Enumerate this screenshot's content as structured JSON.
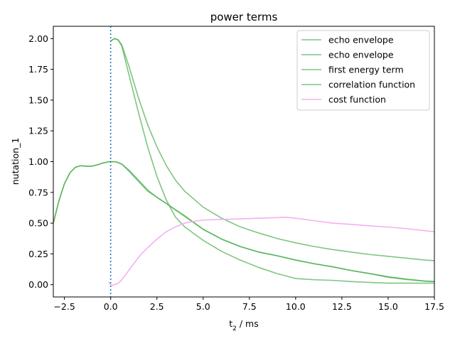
{
  "chart_data": {
    "type": "line",
    "title": "power terms",
    "xlabel_main": "t",
    "xlabel_sub": "2",
    "xlabel_unit": " / ms",
    "ylabel": "nutation_1",
    "xlim": [
      -3.1,
      17.5
    ],
    "ylim": [
      -0.1,
      2.1
    ],
    "xticks": [
      -2.5,
      0.0,
      2.5,
      5.0,
      7.5,
      10.0,
      12.5,
      15.0,
      17.5
    ],
    "xtick_labels": [
      "−2.5",
      "0.0",
      "2.5",
      "5.0",
      "7.5",
      "10.0",
      "12.5",
      "15.0",
      "17.5"
    ],
    "yticks": [
      0.0,
      0.25,
      0.5,
      0.75,
      1.0,
      1.25,
      1.5,
      1.75,
      2.0
    ],
    "ytick_labels": [
      "0.00",
      "0.25",
      "0.50",
      "0.75",
      "1.00",
      "1.25",
      "1.50",
      "1.75",
      "2.00"
    ],
    "vline": {
      "x": 0.0,
      "color": "#1f77b4",
      "style": "dotted"
    },
    "legend_position": "top-right",
    "series": [
      {
        "name": "echo envelope",
        "color": "#4caf50",
        "x": [
          -3.1,
          -2.8,
          -2.5,
          -2.2,
          -1.9,
          -1.6,
          -1.3,
          -1.0,
          -0.7,
          -0.4,
          -0.1,
          0.0,
          0.3,
          0.6,
          1.0,
          1.5,
          2.0,
          2.5,
          3.0,
          4.0,
          5.0,
          6.0,
          7.0,
          8.0,
          9.0,
          10.0,
          11.0,
          12.0,
          13.0,
          14.0,
          15.0,
          16.0,
          17.0,
          17.5
        ],
        "y": [
          0.5,
          0.68,
          0.82,
          0.91,
          0.955,
          0.967,
          0.962,
          0.963,
          0.975,
          0.99,
          0.998,
          1.0,
          0.998,
          0.98,
          0.92,
          0.84,
          0.76,
          0.71,
          0.66,
          0.56,
          0.45,
          0.37,
          0.31,
          0.265,
          0.235,
          0.2,
          0.17,
          0.145,
          0.115,
          0.09,
          0.065,
          0.045,
          0.03,
          0.025
        ]
      },
      {
        "name": "echo envelope",
        "color": "#4caf50",
        "x": [
          0.0,
          0.2,
          0.4,
          0.6,
          1.0,
          1.5,
          2.0,
          2.5,
          3.0,
          3.5,
          4.0,
          5.0,
          6.0,
          7.0,
          8.0,
          9.0,
          10.0,
          11.0,
          12.0,
          13.0,
          14.0,
          15.0,
          16.0,
          17.0,
          17.5
        ],
        "y": [
          1.98,
          2.0,
          1.99,
          1.94,
          1.7,
          1.4,
          1.12,
          0.88,
          0.69,
          0.55,
          0.47,
          0.36,
          0.27,
          0.2,
          0.14,
          0.09,
          0.05,
          0.04,
          0.035,
          0.025,
          0.018,
          0.012,
          0.012,
          0.012,
          0.012
        ]
      },
      {
        "name": "first energy term",
        "color": "#4caf50",
        "x": [
          0.0,
          0.2,
          0.4,
          0.6,
          1.0,
          1.5,
          2.0,
          2.5,
          3.0,
          3.5,
          4.0,
          5.0,
          6.0,
          7.0,
          8.0,
          9.0,
          10.0,
          11.0,
          12.0,
          13.0,
          14.0,
          15.0,
          16.0,
          17.0,
          17.5
        ],
        "y": [
          1.98,
          2.0,
          1.99,
          1.95,
          1.77,
          1.52,
          1.3,
          1.12,
          0.97,
          0.85,
          0.76,
          0.63,
          0.54,
          0.47,
          0.42,
          0.375,
          0.34,
          0.31,
          0.285,
          0.265,
          0.245,
          0.23,
          0.215,
          0.2,
          0.195
        ]
      },
      {
        "name": "correlation function",
        "color": "#4caf50",
        "x": [
          -3.1,
          -2.8,
          -2.5,
          -2.2,
          -1.9,
          -1.6,
          -1.3,
          -1.0,
          -0.7,
          -0.4,
          -0.1,
          0.0,
          0.3,
          0.6,
          1.0,
          1.5,
          2.0,
          2.5,
          3.0,
          4.0,
          5.0,
          6.0,
          7.0,
          8.0,
          9.0,
          10.0,
          11.0,
          12.0,
          13.0,
          14.0,
          15.0,
          16.0,
          17.0,
          17.5
        ],
        "y": [
          0.5,
          0.68,
          0.82,
          0.91,
          0.955,
          0.967,
          0.962,
          0.963,
          0.975,
          0.99,
          0.998,
          1.0,
          0.998,
          0.98,
          0.93,
          0.85,
          0.77,
          0.71,
          0.66,
          0.555,
          0.45,
          0.37,
          0.31,
          0.265,
          0.235,
          0.2,
          0.17,
          0.145,
          0.115,
          0.09,
          0.06,
          0.042,
          0.028,
          0.025
        ]
      },
      {
        "name": "cost function",
        "color": "#f5b0f0",
        "x": [
          -0.1,
          0.0,
          0.1,
          0.2,
          0.4,
          0.6,
          0.8,
          1.0,
          1.3,
          1.6,
          2.0,
          2.5,
          3.0,
          3.5,
          4.0,
          4.5,
          5.0,
          6.0,
          7.0,
          8.0,
          9.0,
          9.5,
          10.0,
          11.0,
          12.0,
          13.0,
          14.0,
          15.0,
          16.0,
          17.0,
          17.5
        ],
        "y": [
          0.02,
          0.0,
          -0.005,
          0.0,
          0.01,
          0.04,
          0.08,
          0.12,
          0.18,
          0.24,
          0.3,
          0.37,
          0.43,
          0.47,
          0.5,
          0.515,
          0.525,
          0.53,
          0.535,
          0.54,
          0.545,
          0.548,
          0.54,
          0.52,
          0.5,
          0.49,
          0.478,
          0.468,
          0.455,
          0.438,
          0.43
        ]
      }
    ]
  }
}
